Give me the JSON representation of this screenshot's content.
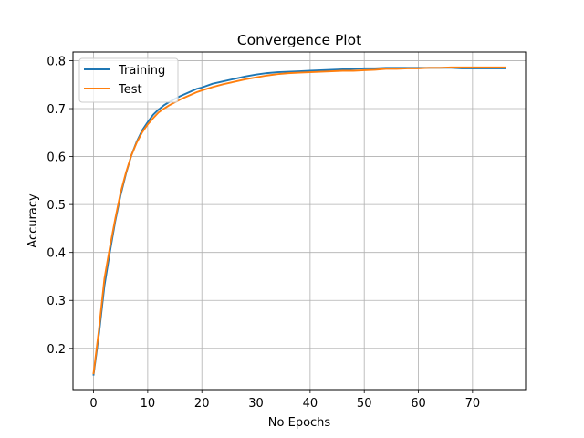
{
  "chart_data": {
    "type": "line",
    "title": "Convergence Plot",
    "xlabel": "No Epochs",
    "ylabel": "Accuracy",
    "xlim": [
      -3.8,
      79.8
    ],
    "ylim": [
      0.114,
      0.818
    ],
    "xticks": [
      0,
      10,
      20,
      30,
      40,
      50,
      60,
      70
    ],
    "yticks": [
      0.2,
      0.3,
      0.4,
      0.5,
      0.6,
      0.7,
      0.8
    ],
    "grid": true,
    "legend_position": "top-left",
    "series": [
      {
        "name": "Training",
        "color": "#1f77b4",
        "points": [
          [
            0,
            0.145
          ],
          [
            1,
            0.23
          ],
          [
            2,
            0.33
          ],
          [
            3,
            0.4
          ],
          [
            4,
            0.465
          ],
          [
            5,
            0.52
          ],
          [
            6,
            0.565
          ],
          [
            7,
            0.603
          ],
          [
            8,
            0.632
          ],
          [
            9,
            0.655
          ],
          [
            10,
            0.672
          ],
          [
            11,
            0.687
          ],
          [
            12,
            0.698
          ],
          [
            13,
            0.707
          ],
          [
            14,
            0.714
          ],
          [
            15,
            0.72
          ],
          [
            16,
            0.726
          ],
          [
            17,
            0.731
          ],
          [
            18,
            0.736
          ],
          [
            19,
            0.741
          ],
          [
            20,
            0.744
          ],
          [
            22,
            0.752
          ],
          [
            24,
            0.757
          ],
          [
            26,
            0.762
          ],
          [
            28,
            0.767
          ],
          [
            30,
            0.771
          ],
          [
            32,
            0.774
          ],
          [
            34,
            0.776
          ],
          [
            36,
            0.777
          ],
          [
            38,
            0.778
          ],
          [
            40,
            0.779
          ],
          [
            42,
            0.78
          ],
          [
            44,
            0.781
          ],
          [
            46,
            0.782
          ],
          [
            48,
            0.783
          ],
          [
            50,
            0.784
          ],
          [
            52,
            0.784
          ],
          [
            54,
            0.785
          ],
          [
            56,
            0.785
          ],
          [
            58,
            0.785
          ],
          [
            60,
            0.785
          ],
          [
            62,
            0.785
          ],
          [
            64,
            0.785
          ],
          [
            66,
            0.785
          ],
          [
            68,
            0.784
          ],
          [
            70,
            0.784
          ],
          [
            72,
            0.784
          ],
          [
            74,
            0.784
          ],
          [
            76,
            0.784
          ]
        ]
      },
      {
        "name": "Test",
        "color": "#ff7f0e",
        "points": [
          [
            0,
            0.148
          ],
          [
            1,
            0.24
          ],
          [
            2,
            0.345
          ],
          [
            3,
            0.41
          ],
          [
            4,
            0.47
          ],
          [
            5,
            0.525
          ],
          [
            6,
            0.567
          ],
          [
            7,
            0.603
          ],
          [
            8,
            0.63
          ],
          [
            9,
            0.651
          ],
          [
            10,
            0.667
          ],
          [
            11,
            0.68
          ],
          [
            12,
            0.692
          ],
          [
            13,
            0.7
          ],
          [
            14,
            0.707
          ],
          [
            15,
            0.713
          ],
          [
            16,
            0.719
          ],
          [
            17,
            0.724
          ],
          [
            18,
            0.729
          ],
          [
            19,
            0.734
          ],
          [
            20,
            0.738
          ],
          [
            22,
            0.745
          ],
          [
            24,
            0.751
          ],
          [
            26,
            0.756
          ],
          [
            28,
            0.761
          ],
          [
            30,
            0.765
          ],
          [
            32,
            0.769
          ],
          [
            34,
            0.772
          ],
          [
            36,
            0.774
          ],
          [
            38,
            0.775
          ],
          [
            40,
            0.776
          ],
          [
            42,
            0.777
          ],
          [
            44,
            0.778
          ],
          [
            46,
            0.779
          ],
          [
            48,
            0.779
          ],
          [
            50,
            0.78
          ],
          [
            52,
            0.781
          ],
          [
            54,
            0.783
          ],
          [
            56,
            0.783
          ],
          [
            58,
            0.784
          ],
          [
            60,
            0.784
          ],
          [
            62,
            0.785
          ],
          [
            64,
            0.785
          ],
          [
            66,
            0.786
          ],
          [
            68,
            0.786
          ],
          [
            70,
            0.786
          ],
          [
            72,
            0.786
          ],
          [
            74,
            0.786
          ],
          [
            76,
            0.786
          ]
        ]
      }
    ]
  }
}
